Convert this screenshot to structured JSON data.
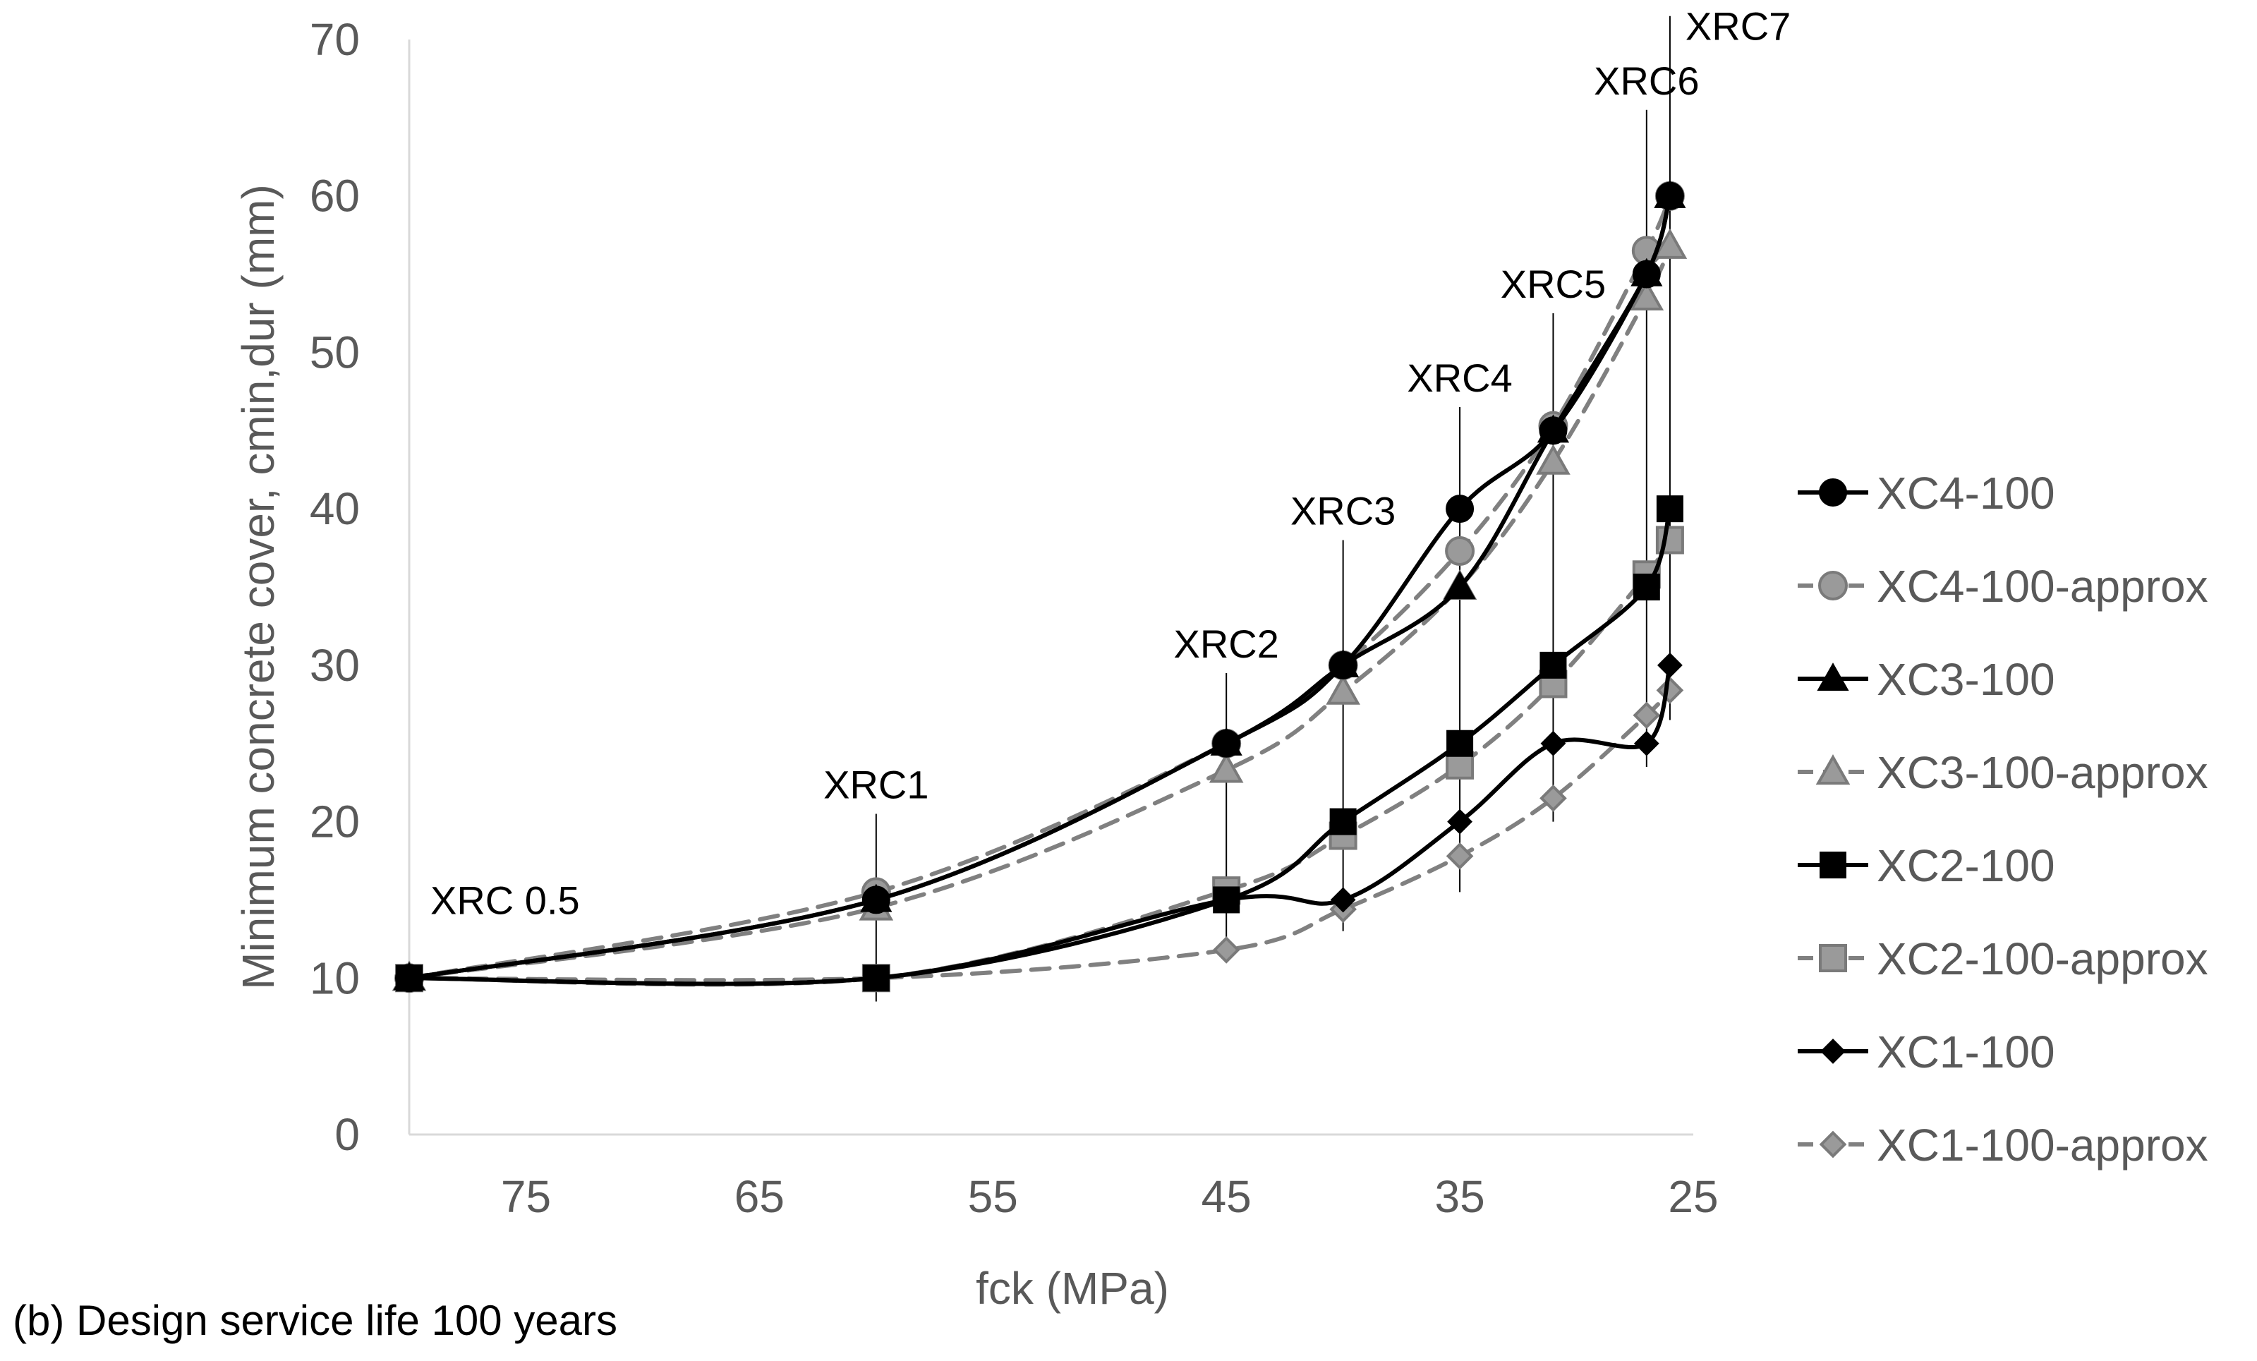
{
  "chart_data": {
    "type": "line",
    "xlabel": "fck (MPa)",
    "ylabel": "Minimum concrete cover, cmin,dur (mm)",
    "caption": "(b) Design service life 100 years",
    "x_reversed": true,
    "xlim": [
      80,
      25
    ],
    "ylim": [
      0,
      70
    ],
    "x_ticks": [
      75,
      65,
      55,
      45,
      35,
      25
    ],
    "y_ticks": [
      0,
      10,
      20,
      30,
      40,
      50,
      60,
      70
    ],
    "grid": false,
    "legend_position": "right",
    "reference_lines": [
      {
        "label": "XRC 0.5",
        "x": 80
      },
      {
        "label": "XRC1",
        "x": 60,
        "y_low": 8.5,
        "y_high": 20.5
      },
      {
        "label": "XRC2",
        "x": 45,
        "y_low": 11.5,
        "y_high": 29.5
      },
      {
        "label": "XRC3",
        "x": 40,
        "y_low": 13.0,
        "y_high": 38.0
      },
      {
        "label": "XRC4",
        "x": 35,
        "y_low": 15.5,
        "y_high": 46.5
      },
      {
        "label": "XRC5",
        "x": 31,
        "y_low": 20.0,
        "y_high": 52.5
      },
      {
        "label": "XRC6",
        "x": 27,
        "y_low": 23.5,
        "y_high": 65.5
      },
      {
        "label": "XRC7",
        "x": 26,
        "y_low": 26.5,
        "y_high": 71.5
      }
    ],
    "series": [
      {
        "name": "XC4-100",
        "style": "solid",
        "color": "#000000",
        "marker": "circle",
        "x": [
          80,
          60,
          45,
          40,
          35,
          31,
          27,
          26
        ],
        "y": [
          10,
          15,
          25,
          30,
          40,
          45,
          55,
          60
        ]
      },
      {
        "name": "XC4-100-approx",
        "style": "dashed",
        "color": "#808080",
        "marker": "circle",
        "x": [
          80,
          60,
          45,
          40,
          35,
          31,
          27,
          26
        ],
        "y": [
          10,
          15.5,
          25,
          30,
          37.3,
          45.3,
          56.5,
          60
        ]
      },
      {
        "name": "XC3-100",
        "style": "solid",
        "color": "#000000",
        "marker": "triangle",
        "x": [
          80,
          60,
          45,
          40,
          35,
          31,
          27,
          26
        ],
        "y": [
          10,
          15,
          25,
          30,
          35,
          45,
          55,
          60
        ]
      },
      {
        "name": "XC3-100-approx",
        "style": "dashed",
        "color": "#808080",
        "marker": "triangle",
        "x": [
          80,
          60,
          45,
          40,
          35,
          31,
          27,
          26
        ],
        "y": [
          10,
          14.5,
          23.3,
          28.3,
          35,
          43,
          53.5,
          56.8
        ]
      },
      {
        "name": "XC2-100",
        "style": "solid",
        "color": "#000000",
        "marker": "square",
        "x": [
          80,
          60,
          45,
          40,
          35,
          31,
          27,
          26
        ],
        "y": [
          10,
          10,
          15,
          20,
          25,
          30,
          35,
          40
        ]
      },
      {
        "name": "XC2-100-approx",
        "style": "dashed",
        "color": "#808080",
        "marker": "square",
        "x": [
          80,
          60,
          45,
          40,
          35,
          31,
          27,
          26
        ],
        "y": [
          10,
          10,
          15.6,
          19.1,
          23.6,
          28.8,
          35.8,
          38
        ]
      },
      {
        "name": "XC1-100",
        "style": "solid",
        "color": "#000000",
        "marker": "diamond",
        "x": [
          80,
          60,
          45,
          40,
          35,
          31,
          27,
          26
        ],
        "y": [
          10,
          10,
          15,
          15,
          20,
          25,
          25,
          30
        ]
      },
      {
        "name": "XC1-100-approx",
        "style": "dashed",
        "color": "#808080",
        "marker": "diamond",
        "x": [
          80,
          60,
          45,
          40,
          35,
          31,
          27,
          26
        ],
        "y": [
          10,
          10,
          11.8,
          14.4,
          17.8,
          21.5,
          26.8,
          28.4
        ]
      }
    ]
  }
}
